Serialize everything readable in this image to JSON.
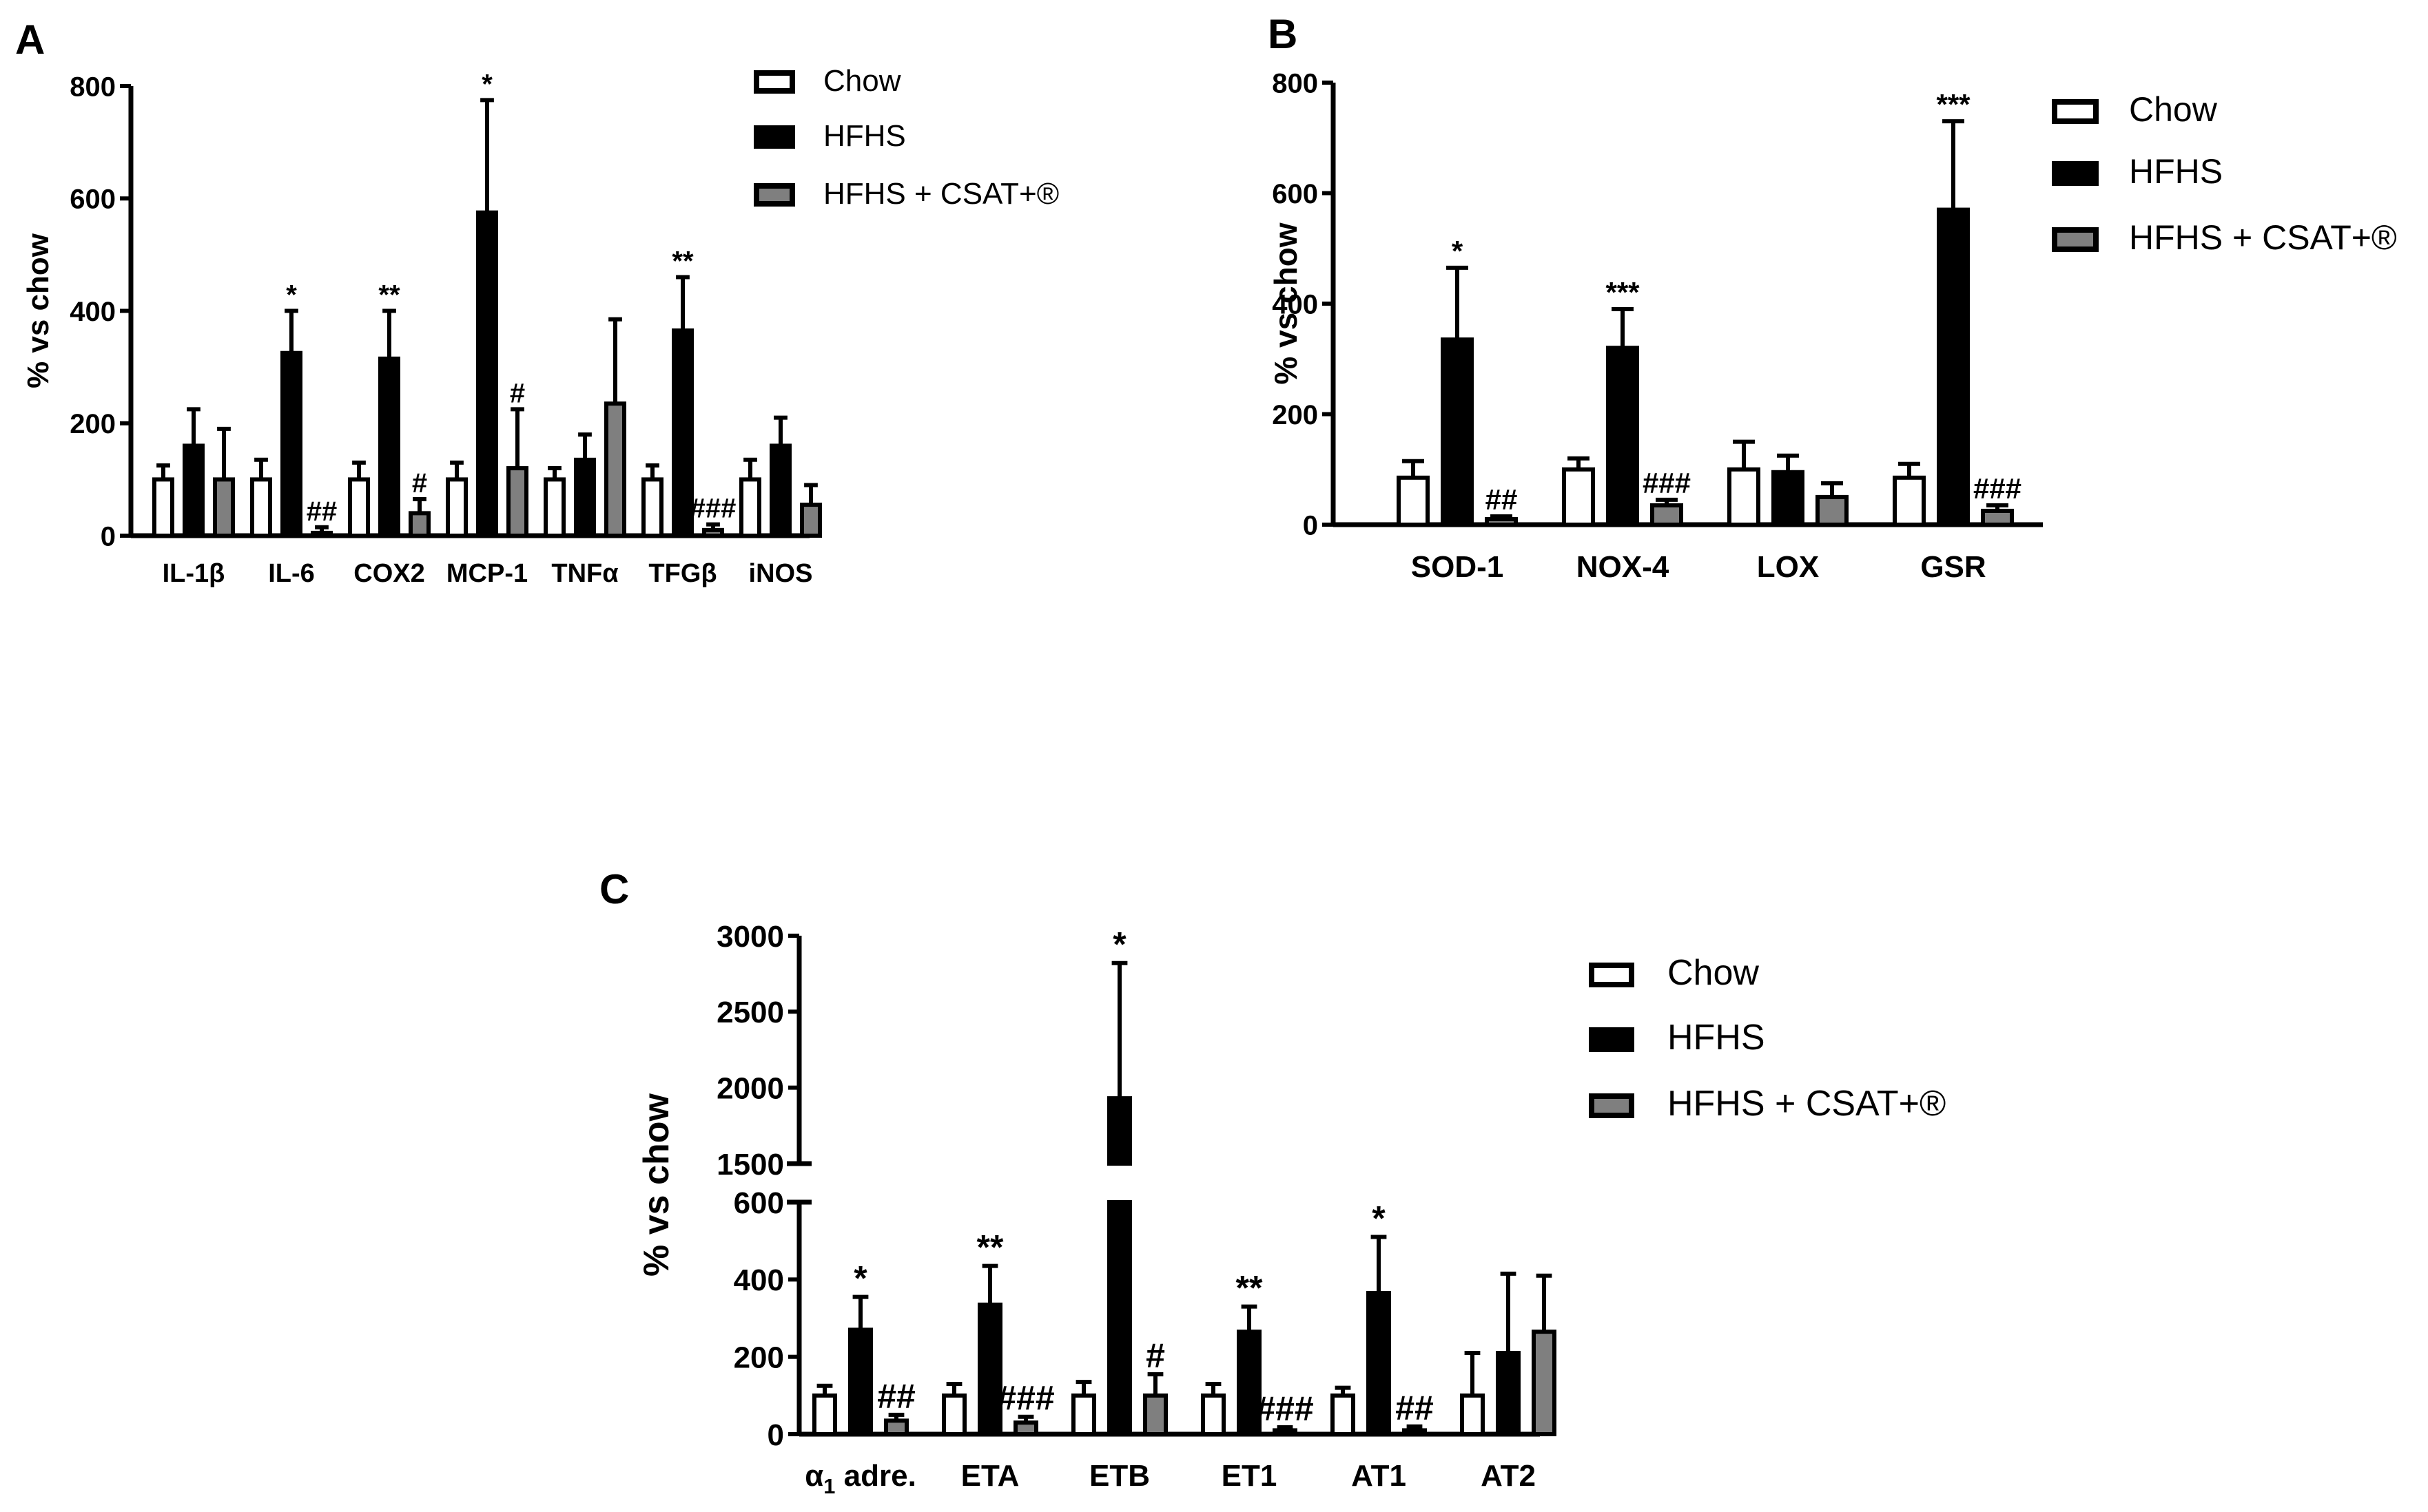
{
  "legend": {
    "chow": "Chow",
    "hfhs": "HFHS",
    "csat": "HFHS + CSAT+®"
  },
  "colors": {
    "chow": "#ffffff",
    "hfhs": "#000000",
    "csat": "#7f7f7f",
    "axis": "#000000"
  },
  "chart_data": [
    {
      "panel": "A",
      "type": "bar",
      "ylabel": "% vs chow",
      "ylim": [
        0,
        800
      ],
      "yticks": [
        0,
        200,
        400,
        600,
        800
      ],
      "categories": [
        "IL-1β",
        "IL-6",
        "COX2",
        "MCP-1",
        "TNFα",
        "TFGβ",
        "iNOS"
      ],
      "series": [
        {
          "key": "chow",
          "name": "Chow",
          "values": [
            100,
            100,
            100,
            100,
            100,
            100,
            100
          ],
          "errors": [
            25,
            35,
            30,
            30,
            20,
            25,
            35
          ]
        },
        {
          "key": "hfhs",
          "name": "HFHS",
          "values": [
            160,
            325,
            315,
            575,
            135,
            365,
            160
          ],
          "errors": [
            65,
            75,
            85,
            200,
            45,
            95,
            50
          ]
        },
        {
          "key": "csat",
          "name": "HFHS + CSAT+®",
          "values": [
            100,
            5,
            40,
            120,
            235,
            10,
            55
          ],
          "errors": [
            90,
            10,
            25,
            105,
            150,
            10,
            35
          ]
        }
      ],
      "annotations": [
        {
          "category": "IL-6",
          "series": "hfhs",
          "text": "*"
        },
        {
          "category": "IL-6",
          "series": "csat",
          "text": "##"
        },
        {
          "category": "COX2",
          "series": "hfhs",
          "text": "**"
        },
        {
          "category": "COX2",
          "series": "csat",
          "text": "#"
        },
        {
          "category": "MCP-1",
          "series": "hfhs",
          "text": "*"
        },
        {
          "category": "MCP-1",
          "series": "csat",
          "text": "#"
        },
        {
          "category": "TFGβ",
          "series": "hfhs",
          "text": "**"
        },
        {
          "category": "TFGβ",
          "series": "csat",
          "text": "###"
        }
      ]
    },
    {
      "panel": "B",
      "type": "bar",
      "ylabel": "% vs chow",
      "ylim": [
        0,
        800
      ],
      "yticks": [
        0,
        200,
        400,
        600,
        800
      ],
      "categories": [
        "SOD-1",
        "NOX-4",
        "LOX",
        "GSR"
      ],
      "series": [
        {
          "key": "chow",
          "name": "Chow",
          "values": [
            85,
            100,
            100,
            85
          ],
          "errors": [
            30,
            20,
            50,
            25
          ]
        },
        {
          "key": "hfhs",
          "name": "HFHS",
          "values": [
            335,
            320,
            95,
            570
          ],
          "errors": [
            130,
            70,
            30,
            160
          ]
        },
        {
          "key": "csat",
          "name": "HFHS + CSAT+®",
          "values": [
            10,
            35,
            50,
            25
          ],
          "errors": [
            5,
            10,
            25,
            10
          ]
        }
      ],
      "annotations": [
        {
          "category": "SOD-1",
          "series": "hfhs",
          "text": "*"
        },
        {
          "category": "SOD-1",
          "series": "csat",
          "text": "##"
        },
        {
          "category": "NOX-4",
          "series": "hfhs",
          "text": "***"
        },
        {
          "category": "NOX-4",
          "series": "csat",
          "text": "###"
        },
        {
          "category": "GSR",
          "series": "hfhs",
          "text": "***"
        },
        {
          "category": "GSR",
          "series": "csat",
          "text": "###"
        }
      ]
    },
    {
      "panel": "C",
      "type": "bar",
      "ylabel": "% vs chow",
      "ylim": [
        0,
        3000
      ],
      "axis_break": [
        600,
        1500
      ],
      "yticks": [
        0,
        200,
        400,
        600,
        1500,
        2000,
        2500,
        3000
      ],
      "categories": [
        "α1 adre.",
        "ETA",
        "ETB",
        "ET1",
        "AT1",
        "AT2"
      ],
      "series": [
        {
          "key": "chow",
          "name": "Chow",
          "values": [
            100,
            100,
            100,
            100,
            100,
            100
          ],
          "errors": [
            25,
            30,
            35,
            30,
            20,
            110
          ]
        },
        {
          "key": "hfhs",
          "name": "HFHS",
          "values": [
            270,
            335,
            1930,
            265,
            365,
            210
          ],
          "errors": [
            85,
            100,
            890,
            65,
            145,
            205
          ]
        },
        {
          "key": "csat",
          "name": "HFHS + CSAT+®",
          "values": [
            35,
            30,
            100,
            10,
            10,
            265
          ],
          "errors": [
            15,
            15,
            55,
            8,
            10,
            145
          ]
        }
      ],
      "annotations": [
        {
          "category": "α1 adre.",
          "series": "hfhs",
          "text": "*"
        },
        {
          "category": "α1 adre.",
          "series": "csat",
          "text": "##"
        },
        {
          "category": "ETA",
          "series": "hfhs",
          "text": "**"
        },
        {
          "category": "ETA",
          "series": "csat",
          "text": "###"
        },
        {
          "category": "ETB",
          "series": "hfhs",
          "text": "*"
        },
        {
          "category": "ETB",
          "series": "csat",
          "text": "#"
        },
        {
          "category": "ET1",
          "series": "hfhs",
          "text": "**"
        },
        {
          "category": "ET1",
          "series": "csat",
          "text": "###"
        },
        {
          "category": "AT1",
          "series": "hfhs",
          "text": "*"
        },
        {
          "category": "AT1",
          "series": "csat",
          "text": "##"
        }
      ]
    }
  ]
}
